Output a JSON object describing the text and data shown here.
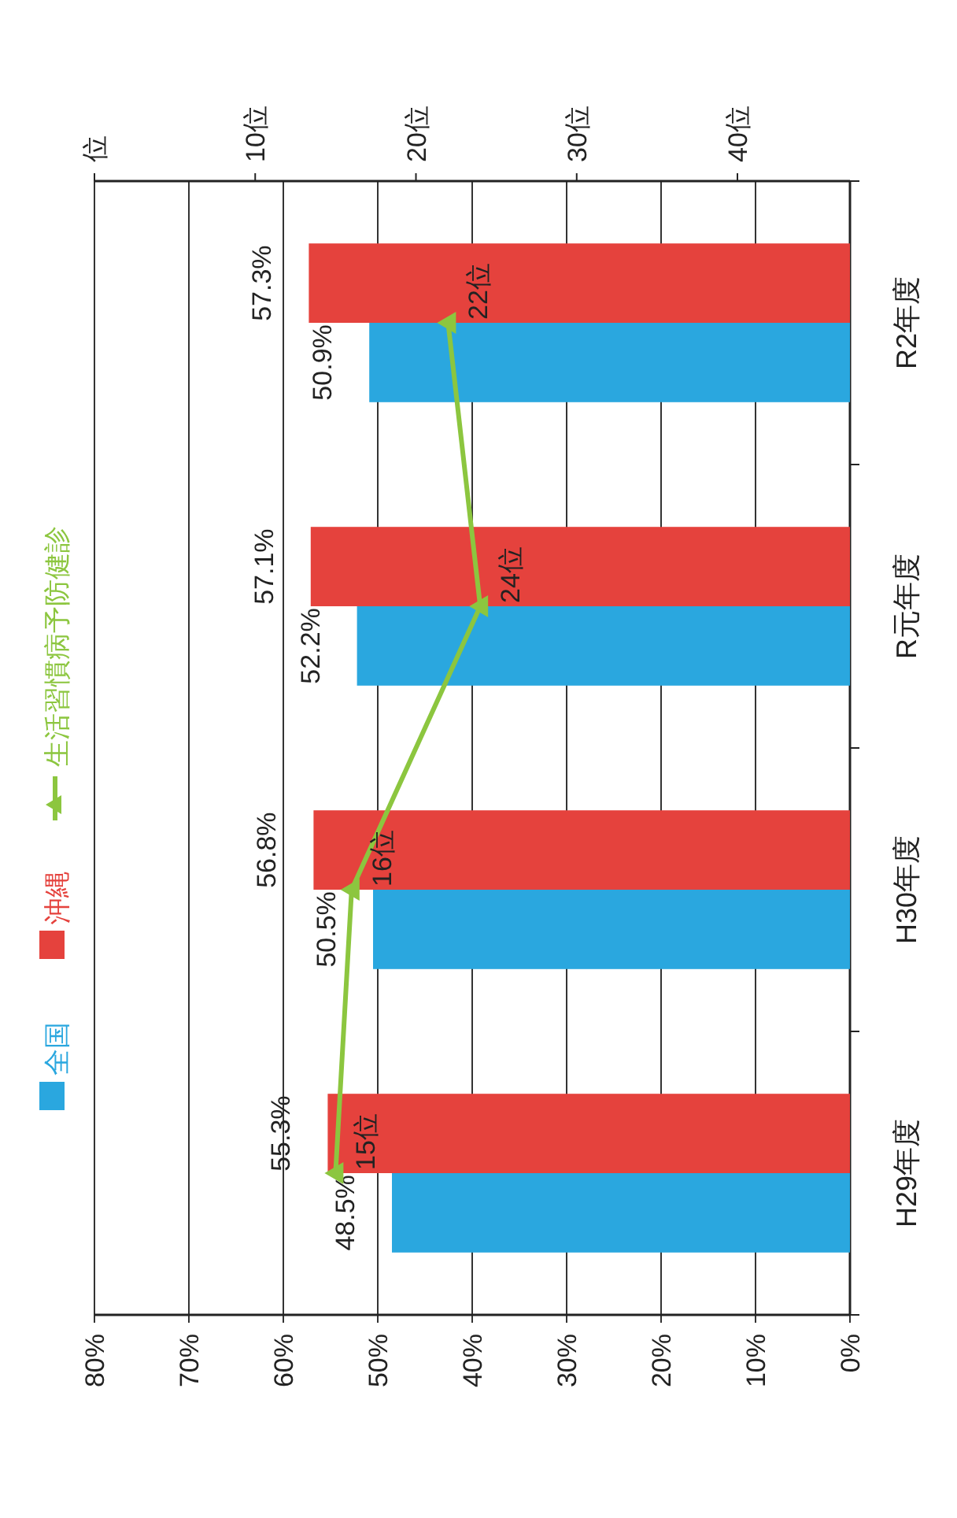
{
  "chart_data": {
    "type": "bar",
    "orientation": "horizontal",
    "categories": [
      "R2年度",
      "R元年度",
      "H30年度",
      "H29年度"
    ],
    "series": [
      {
        "name": "全国",
        "color": "#2aa7df",
        "values": [
          50.9,
          52.2,
          50.5,
          48.5
        ],
        "value_labels": [
          "50.9%",
          "52.2%",
          "50.5%",
          "48.5%"
        ]
      },
      {
        "name": "沖縄",
        "color": "#e5423d",
        "values": [
          57.3,
          57.1,
          56.8,
          55.3
        ],
        "value_labels": [
          "57.3%",
          "57.1%",
          "56.8%",
          "55.3%"
        ]
      },
      {
        "name": "生活習慣病予防健診",
        "type": "line",
        "axis": "x2",
        "color": "#8cc63f",
        "marker": "triangle",
        "values": [
          22,
          24,
          16,
          15
        ],
        "value_labels": [
          "22位",
          "24位",
          "16位",
          "15位"
        ]
      }
    ],
    "xlim": [
      80,
      0
    ],
    "xticks": [
      {
        "value": 80,
        "label": "80%"
      },
      {
        "value": 70,
        "label": "70%"
      },
      {
        "value": 60,
        "label": "60%"
      },
      {
        "value": 50,
        "label": "50%"
      },
      {
        "value": 40,
        "label": "40%"
      },
      {
        "value": 30,
        "label": "30%"
      },
      {
        "value": 20,
        "label": "20%"
      },
      {
        "value": 10,
        "label": "10%"
      },
      {
        "value": 0,
        "label": "0%"
      }
    ],
    "x2lim": [
      0,
      47
    ],
    "x2ticks": [
      {
        "value": 0,
        "label": "位"
      },
      {
        "value": 10,
        "label": "10位"
      },
      {
        "value": 20,
        "label": "20位"
      },
      {
        "value": 30,
        "label": "30位"
      },
      {
        "value": 40,
        "label": "40位"
      }
    ],
    "grid": "x",
    "legend": "left"
  }
}
